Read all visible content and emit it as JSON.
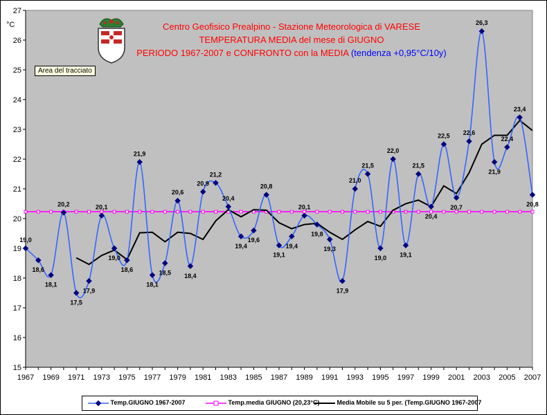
{
  "chart_data": {
    "type": "line",
    "title_lines": [
      "Centro Geofisico Prealpino - Stazione Meteorologica di VARESE",
      "TEMPERATURA MEDIA del mese di GIUGNO",
      "PERIODO 1967-2007 e CONFRONTO con la MEDIA"
    ],
    "trend_note": "(tendenza +0,95°C/10y)",
    "ylabel": "°C",
    "xlim": [
      1967,
      2007
    ],
    "ylim": [
      15,
      27
    ],
    "x_ticks": [
      "1967",
      "1969",
      "1971",
      "1973",
      "1975",
      "1977",
      "1979",
      "1981",
      "1983",
      "1985",
      "1987",
      "1989",
      "1991",
      "1993",
      "1995",
      "1997",
      "1999",
      "2001",
      "2003",
      "2005",
      "2007"
    ],
    "y_ticks": [
      "15",
      "16",
      "17",
      "18",
      "19",
      "20",
      "21",
      "22",
      "23",
      "24",
      "25",
      "26",
      "27"
    ],
    "x": [
      1967,
      1968,
      1969,
      1970,
      1971,
      1972,
      1973,
      1974,
      1975,
      1976,
      1977,
      1978,
      1979,
      1980,
      1981,
      1982,
      1983,
      1984,
      1985,
      1986,
      1987,
      1988,
      1989,
      1990,
      1991,
      1992,
      1993,
      1994,
      1995,
      1996,
      1997,
      1998,
      1999,
      2000,
      2001,
      2002,
      2003,
      2004,
      2005,
      2006,
      2007
    ],
    "series": [
      {
        "name": "Temp.GIUGNO 1967-2007",
        "color": "#3366ff",
        "marker_color": "#000080",
        "values": [
          19.0,
          18.6,
          18.1,
          20.2,
          17.5,
          17.9,
          20.1,
          19.0,
          18.6,
          21.9,
          18.1,
          18.5,
          20.6,
          18.4,
          20.9,
          21.2,
          20.4,
          19.4,
          19.6,
          20.8,
          19.1,
          19.4,
          20.1,
          19.8,
          19.3,
          17.9,
          21.0,
          21.5,
          19.0,
          22.0,
          19.1,
          21.5,
          20.4,
          22.5,
          20.7,
          22.6,
          26.3,
          21.9,
          22.4,
          23.4,
          20.8
        ],
        "labels": [
          "19,0",
          "18,6",
          "18,1",
          "20,2",
          "17,5",
          "17,9",
          "20,1",
          "19,0",
          "18,6",
          "21,9",
          "18,1",
          "18,5",
          "20,6",
          "18,4",
          "20,9",
          "21,2",
          "20,4",
          "19,4",
          "19,6",
          "20,8",
          "19,1",
          "19,4",
          "20,1",
          "19,8",
          "19,3",
          "17,9",
          "21,0",
          "21,5",
          "19,0",
          "22,0",
          "19,1",
          "21,5",
          "20,4",
          "22,5",
          "20,7",
          "22,6",
          "26,3",
          "21,9",
          "22,4",
          "23,4",
          "20,8"
        ]
      },
      {
        "name": "Temp.media GIUGNO (20,23°C)",
        "color": "#ff00ff",
        "constant": 20.23
      },
      {
        "name": "Media Mobile su 5 per. (Temp.GIUGNO 1967-2007",
        "color": "#000000",
        "x": [
          1971,
          1972,
          1973,
          1974,
          1975,
          1976,
          1977,
          1978,
          1979,
          1980,
          1981,
          1982,
          1983,
          1984,
          1985,
          1986,
          1987,
          1988,
          1989,
          1990,
          1991,
          1992,
          1993,
          1994,
          1995,
          1996,
          1997,
          1998,
          1999,
          2000,
          2001,
          2002,
          2003,
          2004,
          2005,
          2006,
          2007
        ],
        "values": [
          18.68,
          18.46,
          18.76,
          18.94,
          18.62,
          19.52,
          19.54,
          19.22,
          19.54,
          19.5,
          19.3,
          19.92,
          20.3,
          20.06,
          20.3,
          20.28,
          19.86,
          19.66,
          19.8,
          19.84,
          19.54,
          19.3,
          19.62,
          19.9,
          19.74,
          20.28,
          20.5,
          20.62,
          20.4,
          21.1,
          20.84,
          21.54,
          22.5,
          22.8,
          22.8,
          23.3,
          22.96
        ]
      }
    ],
    "grid": false,
    "legend_position": "bottom",
    "tooltip": "Area del tracciato",
    "background": "#c0c0c0"
  }
}
